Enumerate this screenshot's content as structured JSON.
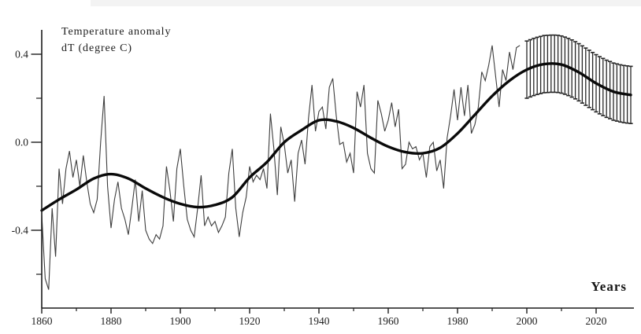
{
  "page": {
    "title_line1": "Temperature anomaly",
    "title_line2": "dT (degree C)",
    "x_axis_title": "Years"
  },
  "colors": {
    "background": "#ffffff",
    "ink": "#1c1c1c",
    "annual_line": "#3d3d3d",
    "smoothed_line": "#0a0a0a",
    "error_bar": "#262626"
  },
  "chart_data": {
    "type": "line",
    "title": "Temperature anomaly dT (degree C)",
    "xlabel": "Years",
    "ylabel": "Temperature anomaly dT (degree C)",
    "xlim": [
      1858,
      2031
    ],
    "ylim": [
      -0.75,
      0.51
    ],
    "grid": false,
    "legend": false,
    "x_ticks_major": [
      1860,
      1880,
      1900,
      1920,
      1940,
      1960,
      1980,
      2000,
      2020
    ],
    "x_tick_labels": [
      "1860",
      "1880",
      "1900",
      "1920",
      "1940",
      "1960",
      "1980",
      "2000",
      "2020"
    ],
    "x_ticks_minor": [
      1870,
      1890,
      1910,
      1930,
      1950,
      1970,
      1990,
      2010
    ],
    "y_ticks_major": [
      0.4,
      0.0,
      -0.4
    ],
    "y_tick_labels": [
      "0.4",
      "0.0",
      "-0.4"
    ],
    "y_ticks_minor": [
      0.2,
      -0.2,
      -0.6
    ],
    "series": [
      {
        "name": "annual temperature anomaly (observed)",
        "style": "thin-jagged-line",
        "x_start": 1860,
        "x_step": 1,
        "values": [
          -0.33,
          -0.62,
          -0.67,
          -0.3,
          -0.52,
          -0.12,
          -0.28,
          -0.12,
          -0.04,
          -0.16,
          -0.08,
          -0.2,
          -0.06,
          -0.18,
          -0.28,
          -0.32,
          -0.26,
          0.0,
          0.21,
          -0.2,
          -0.39,
          -0.26,
          -0.18,
          -0.3,
          -0.35,
          -0.42,
          -0.3,
          -0.17,
          -0.36,
          -0.22,
          -0.4,
          -0.44,
          -0.46,
          -0.42,
          -0.44,
          -0.38,
          -0.11,
          -0.22,
          -0.36,
          -0.12,
          -0.03,
          -0.2,
          -0.35,
          -0.4,
          -0.43,
          -0.3,
          -0.15,
          -0.38,
          -0.34,
          -0.38,
          -0.36,
          -0.41,
          -0.38,
          -0.34,
          -0.14,
          -0.03,
          -0.3,
          -0.43,
          -0.32,
          -0.25,
          -0.11,
          -0.18,
          -0.15,
          -0.17,
          -0.12,
          -0.21,
          0.13,
          -0.03,
          -0.24,
          0.07,
          -0.01,
          -0.14,
          -0.08,
          -0.27,
          -0.05,
          0.01,
          -0.1,
          0.11,
          0.26,
          0.05,
          0.14,
          0.16,
          0.06,
          0.25,
          0.29,
          0.12,
          -0.01,
          0.0,
          -0.09,
          -0.05,
          -0.14,
          0.23,
          0.16,
          0.26,
          -0.05,
          -0.12,
          -0.14,
          0.19,
          0.13,
          0.05,
          0.1,
          0.18,
          0.07,
          0.15,
          -0.12,
          -0.1,
          0.0,
          -0.03,
          -0.02,
          -0.08,
          -0.05,
          -0.16,
          -0.02,
          0.0,
          -0.13,
          -0.08,
          -0.21,
          0.02,
          0.12,
          0.24,
          0.1,
          0.25,
          0.12,
          0.26,
          0.04,
          0.08,
          0.16,
          0.32,
          0.28,
          0.35,
          0.44,
          0.3,
          0.16,
          0.33,
          0.28,
          0.41,
          0.33,
          0.43,
          0.44
        ]
      },
      {
        "name": "smoothed multidecadal trend",
        "style": "thick-smooth-line",
        "x_start": 1860,
        "x_step": 5,
        "values": [
          -0.31,
          -0.26,
          -0.215,
          -0.165,
          -0.145,
          -0.165,
          -0.21,
          -0.25,
          -0.28,
          -0.295,
          -0.285,
          -0.25,
          -0.16,
          -0.09,
          0.0,
          0.055,
          0.1,
          0.095,
          0.065,
          0.02,
          -0.02,
          -0.045,
          -0.05,
          -0.025,
          0.04,
          0.125,
          0.21,
          0.28,
          0.33,
          0.355,
          0.353,
          0.318,
          0.268,
          0.23,
          0.215
        ]
      },
      {
        "name": "forecast with uncertainty range",
        "style": "vertical-error-bars",
        "x_start": 2000,
        "x_step": 1,
        "half_width": 0.13,
        "values": [
          0.33,
          0.336,
          0.342,
          0.347,
          0.351,
          0.355,
          0.356,
          0.357,
          0.357,
          0.356,
          0.353,
          0.348,
          0.342,
          0.335,
          0.327,
          0.318,
          0.308,
          0.298,
          0.288,
          0.278,
          0.268,
          0.259,
          0.251,
          0.243,
          0.237,
          0.23,
          0.226,
          0.222,
          0.219,
          0.217,
          0.215
        ]
      }
    ]
  }
}
